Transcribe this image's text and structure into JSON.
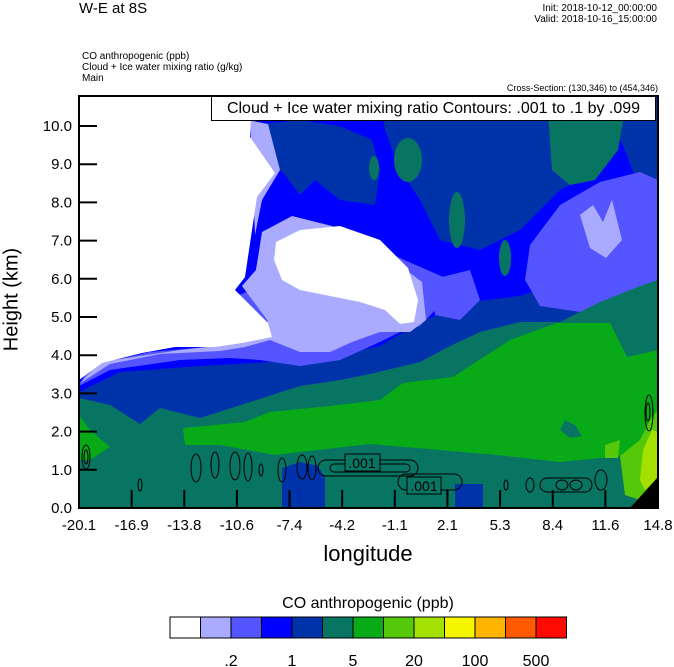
{
  "header": {
    "title": "W-E at 8S",
    "init": "Init: 2018-10-12_00:00:00",
    "valid": "Valid: 2018-10-16_15:00:00",
    "fields": [
      "CO anthropogenic   (ppb)",
      "Cloud + Ice water mixing ratio   (g/kg)",
      "Main"
    ],
    "cross_section": "Cross-Section: (130,346) to (454,346)"
  },
  "chart_data": {
    "type": "heatmap",
    "title": "W-E at 8S",
    "contour_title": "Cloud + Ice water mixing ratio Contours: .001 to .1 by .099",
    "contour_labels": [
      ".001",
      ".001"
    ],
    "xlabel": "longitude",
    "ylabel": "Height (km)",
    "x_ticks": [
      "-20.1",
      "-16.9",
      "-13.8",
      "-10.6",
      "-7.4",
      "-4.2",
      "-1.1",
      "2.1",
      "5.3",
      "8.4",
      "11.6",
      "14.8"
    ],
    "y_ticks": [
      "0.0",
      "1.0",
      "2.0",
      "3.0",
      "4.0",
      "5.0",
      "6.0",
      "7.0",
      "8.0",
      "9.0",
      "10.0"
    ],
    "xlim": [
      -20.1,
      14.8
    ],
    "ylim": [
      0,
      10.8
    ],
    "colorbar": {
      "title": "CO anthropogenic  (ppb)",
      "colors": [
        "#FFFFFF",
        "#AAAAFF",
        "#5555FF",
        "#0000FF",
        "#0033AA",
        "#087563",
        "#08AA18",
        "#55C80A",
        "#A5E100",
        "#F5F500",
        "#FFB400",
        "#FF5A00",
        "#FF0A00"
      ],
      "labels": [
        ".2",
        "1",
        "5",
        "20",
        "100",
        "500"
      ]
    }
  }
}
